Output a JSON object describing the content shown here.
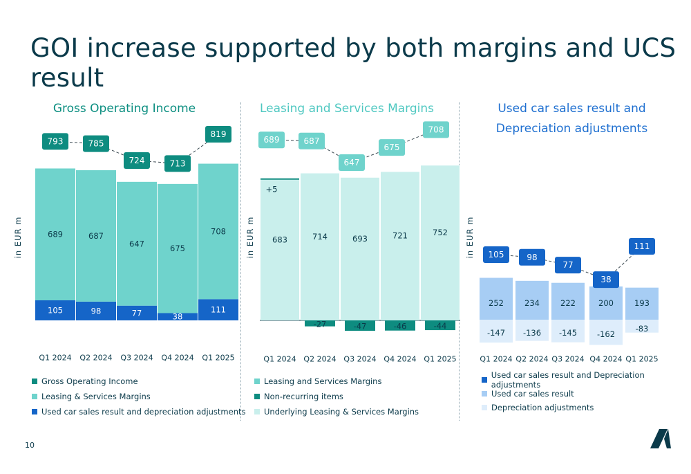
{
  "title": "GOI increase supported by both margins and UCS result",
  "page_number": "10",
  "colors": {
    "title": "#0b3a4a",
    "goi_total": "#0e8c80",
    "lsm": "#6fd3cc",
    "lsm_light": "#c9efec",
    "non_recurring": "#0e8c80",
    "ucs_dark": "#1565c8",
    "ucs_light": "#a7cdf4",
    "depreciation": "#deedfb"
  },
  "chart_data": [
    {
      "id": "goi",
      "type": "bar",
      "stacked": true,
      "title": "Gross Operating Income",
      "ylabel": "in EUR m",
      "categories": [
        "Q1 2024",
        "Q2 2024",
        "Q3 2024",
        "Q4 2024",
        "Q1 2025"
      ],
      "series": [
        {
          "name": "Used car sales result and depreciation adjustments",
          "values": [
            105,
            98,
            77,
            38,
            111
          ],
          "color": "#1565c8"
        },
        {
          "name": "Leasing & Services Margins",
          "values": [
            689,
            687,
            647,
            675,
            708
          ],
          "color": "#6fd3cc"
        }
      ],
      "totals": {
        "name": "Gross Operating Income",
        "values": [
          793,
          785,
          724,
          713,
          819
        ],
        "labels": [
          "793",
          "785",
          "724",
          "713",
          "819"
        ],
        "color": "#0e8c80"
      },
      "legend": [
        {
          "label": "Gross Operating Income",
          "color": "#0e8c80"
        },
        {
          "label": "Leasing & Services Margins",
          "color": "#6fd3cc"
        },
        {
          "label": "Used car sales result and depreciation adjustments",
          "color": "#1565c8"
        }
      ],
      "legend_position": "bottom",
      "grid": false
    },
    {
      "id": "lsm",
      "type": "bar",
      "stacked": true,
      "title": "Leasing and Services Margins",
      "ylabel": "in EUR m",
      "categories": [
        "Q1 2024",
        "Q2 2024",
        "Q3 2024",
        "Q4 2024",
        "Q1 2025"
      ],
      "series": [
        {
          "name": "Underlying Leasing & Services Margins",
          "values": [
            683,
            714,
            693,
            721,
            752
          ],
          "color": "#c9efec"
        },
        {
          "name": "Non-recurring items",
          "values": [
            5,
            -27,
            -47,
            -46,
            -44
          ],
          "labels": [
            "+5",
            "-27",
            "-47",
            "-46",
            "-44"
          ],
          "color": "#0e8c80"
        }
      ],
      "totals": {
        "name": "Leasing and Services Margins",
        "values": [
          689,
          687,
          647,
          675,
          708
        ],
        "labels": [
          "689",
          "687",
          "647",
          "675",
          "708"
        ],
        "color": "#6fd3cc"
      },
      "legend": [
        {
          "label": "Leasing and Services Margins",
          "color": "#6fd3cc"
        },
        {
          "label": "Non-recurring items",
          "color": "#0e8c80"
        },
        {
          "label": "Underlying Leasing & Services Margins",
          "color": "#c9efec"
        }
      ],
      "legend_position": "bottom",
      "grid": false
    },
    {
      "id": "ucs",
      "type": "bar",
      "stacked": true,
      "title": "Used car sales result and Depreciation adjustments",
      "title_lines": [
        "Used car sales result and",
        "Depreciation adjustments"
      ],
      "ylabel": "in EUR m",
      "categories": [
        "Q1 2024",
        "Q2 2024",
        "Q3 2024",
        "Q4 2024",
        "Q1 2025"
      ],
      "series": [
        {
          "name": "Used car sales result",
          "values": [
            252,
            234,
            222,
            200,
            193
          ],
          "labels": [
            "252",
            "234",
            "222",
            "200",
            "193"
          ],
          "color": "#a7cdf4"
        },
        {
          "name": "Depreciation adjustments",
          "values": [
            -147,
            -136,
            -145,
            -162,
            -83
          ],
          "labels": [
            "-147",
            "-136",
            "-145",
            "-162",
            "-83"
          ],
          "color": "#deedfb"
        }
      ],
      "totals": {
        "name": "Used car sales result and Depreciation adjustments",
        "values": [
          105,
          98,
          77,
          38,
          111
        ],
        "labels": [
          "105",
          "98",
          "77",
          "38",
          "111"
        ],
        "color": "#1565c8"
      },
      "legend": [
        {
          "label": "Used car sales result and Depreciation adjustments",
          "color": "#1565c8"
        },
        {
          "label": "Used car sales result",
          "color": "#a7cdf4"
        },
        {
          "label": "Depreciation adjustments",
          "color": "#deedfb"
        }
      ],
      "legend_position": "bottom",
      "grid": false
    }
  ]
}
